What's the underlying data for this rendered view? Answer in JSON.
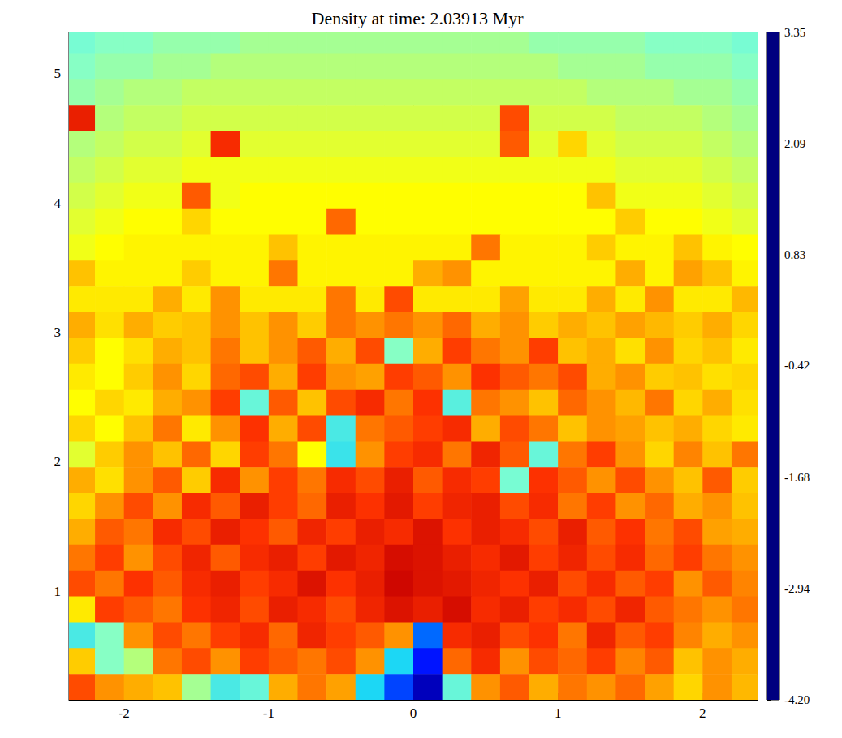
{
  "chart_data": {
    "type": "heatmap",
    "title": "Density at time: 2.03913 Myr",
    "xlim": [
      -2.38,
      2.38
    ],
    "ylim": [
      0.16,
      5.32
    ],
    "xticks": [
      -2,
      -1,
      0,
      1,
      2
    ],
    "yticks": [
      1,
      2,
      3,
      4,
      5
    ],
    "colorbar": {
      "range": [
        -4.2,
        3.35
      ],
      "ticks": [
        3.35,
        2.09,
        0.83,
        -0.42,
        -1.68,
        -2.94,
        {
          "value": -4.2,
          "label": "-4.20"
        }
      ]
    },
    "x": [
      -2.3,
      -2.1,
      -1.9,
      -1.7,
      -1.5,
      -1.3,
      -1.1,
      -0.9,
      -0.7,
      -0.5,
      -0.3,
      -0.1,
      0.1,
      0.3,
      0.5,
      0.7,
      0.9,
      1.1,
      1.3,
      1.5,
      1.7,
      1.9,
      2.1,
      2.3
    ],
    "y": [
      5.26,
      5.06,
      4.86,
      4.66,
      4.46,
      4.26,
      4.06,
      3.86,
      3.66,
      3.46,
      3.26,
      3.06,
      2.86,
      2.66,
      2.46,
      2.26,
      2.06,
      1.86,
      1.66,
      1.46,
      1.26,
      1.06,
      0.86,
      0.66,
      0.46,
      0.26
    ],
    "values": [
      [
        -0.9,
        -0.8,
        -0.8,
        -0.7,
        -0.7,
        -0.7,
        -0.6,
        -0.6,
        -0.6,
        -0.6,
        -0.6,
        -0.6,
        -0.6,
        -0.6,
        -0.6,
        -0.6,
        -0.7,
        -0.7,
        -0.7,
        -0.7,
        -0.8,
        -0.8,
        -0.8,
        -0.9
      ],
      [
        -0.8,
        -0.7,
        -0.7,
        -0.6,
        -0.6,
        -0.5,
        -0.5,
        -0.5,
        -0.5,
        -0.5,
        -0.5,
        -0.5,
        -0.5,
        -0.5,
        -0.5,
        -0.5,
        -0.5,
        -0.6,
        -0.6,
        -0.6,
        -0.7,
        -0.7,
        -0.7,
        -0.8
      ],
      [
        -0.7,
        -0.6,
        -0.5,
        -0.5,
        -0.4,
        -0.4,
        -0.4,
        -0.4,
        -0.4,
        -0.4,
        -0.4,
        -0.4,
        -0.4,
        -0.4,
        -0.4,
        -0.4,
        -0.4,
        -0.4,
        -0.5,
        -0.5,
        -0.5,
        -0.6,
        -0.6,
        -0.7
      ],
      [
        2.0,
        -0.5,
        -0.4,
        -0.4,
        -0.3,
        -0.3,
        -0.3,
        -0.3,
        -0.3,
        -0.3,
        -0.3,
        -0.3,
        -0.3,
        -0.3,
        -0.3,
        1.5,
        -0.3,
        -0.3,
        -0.3,
        -0.4,
        -0.4,
        -0.4,
        -0.5,
        -0.6
      ],
      [
        -0.5,
        -0.4,
        -0.3,
        -0.3,
        -0.2,
        1.8,
        -0.2,
        -0.2,
        -0.2,
        -0.2,
        -0.2,
        -0.2,
        -0.2,
        -0.2,
        -0.2,
        1.4,
        -0.2,
        0.4,
        -0.2,
        -0.3,
        -0.3,
        -0.3,
        -0.4,
        -0.5
      ],
      [
        -0.4,
        -0.3,
        -0.2,
        -0.2,
        -0.1,
        -0.1,
        -0.1,
        -0.1,
        -0.1,
        -0.1,
        -0.1,
        -0.1,
        -0.1,
        -0.1,
        -0.1,
        -0.1,
        -0.1,
        -0.1,
        -0.1,
        -0.2,
        -0.2,
        -0.2,
        -0.3,
        -0.4
      ],
      [
        -0.3,
        -0.2,
        -0.1,
        -0.1,
        1.4,
        -0.1,
        0.0,
        0.0,
        0.0,
        0.0,
        0.0,
        0.0,
        0.0,
        0.0,
        0.0,
        0.0,
        0.0,
        0.0,
        0.6,
        -0.1,
        -0.1,
        -0.1,
        -0.2,
        -0.3
      ],
      [
        -0.2,
        -0.1,
        0.0,
        0.0,
        0.4,
        0.0,
        0.0,
        0.0,
        0.0,
        1.3,
        0.0,
        0.0,
        0.0,
        0.0,
        0.0,
        0.0,
        0.0,
        0.0,
        0.0,
        0.5,
        0.0,
        0.0,
        -0.1,
        -0.2
      ],
      [
        -0.1,
        0.0,
        0.1,
        0.1,
        0.1,
        0.1,
        0.1,
        0.6,
        0.1,
        0.1,
        0.1,
        0.1,
        0.1,
        0.1,
        1.2,
        0.1,
        0.1,
        0.1,
        0.5,
        0.1,
        0.1,
        0.6,
        0.1,
        0.0
      ],
      [
        0.6,
        0.1,
        0.1,
        0.1,
        0.5,
        0.1,
        0.1,
        1.2,
        0.1,
        0.1,
        0.1,
        0.1,
        0.8,
        1.0,
        0.1,
        0.1,
        0.1,
        0.1,
        0.1,
        0.8,
        0.1,
        0.9,
        0.6,
        0.1
      ],
      [
        0.2,
        0.2,
        0.2,
        0.8,
        0.2,
        1.0,
        0.2,
        0.2,
        0.2,
        1.2,
        0.2,
        1.5,
        0.2,
        0.2,
        0.2,
        0.9,
        0.2,
        0.2,
        0.8,
        0.2,
        1.0,
        0.2,
        0.2,
        0.7
      ],
      [
        0.8,
        0.3,
        0.8,
        0.5,
        0.6,
        1.0,
        0.6,
        1.0,
        0.5,
        1.2,
        1.0,
        1.2,
        1.0,
        1.3,
        0.8,
        1.0,
        0.5,
        0.8,
        0.6,
        0.9,
        0.7,
        0.5,
        0.8,
        0.4
      ],
      [
        0.5,
        0.0,
        0.3,
        0.8,
        0.6,
        1.2,
        0.6,
        1.0,
        1.4,
        0.8,
        1.5,
        -0.8,
        0.8,
        1.6,
        1.2,
        1.0,
        1.6,
        0.6,
        0.8,
        0.3,
        1.0,
        0.4,
        0.6,
        0.2
      ],
      [
        0.2,
        0.0,
        0.5,
        1.0,
        0.4,
        1.3,
        1.5,
        0.8,
        1.6,
        1.0,
        0.9,
        1.6,
        1.4,
        1.0,
        1.7,
        1.4,
        1.2,
        1.5,
        0.8,
        1.0,
        0.5,
        0.6,
        0.3,
        0.4
      ],
      [
        0.0,
        0.4,
        0.2,
        0.8,
        1.0,
        1.6,
        -1.0,
        1.4,
        0.6,
        1.5,
        1.8,
        1.2,
        1.7,
        -1.1,
        1.2,
        1.0,
        0.6,
        1.3,
        1.0,
        0.7,
        1.2,
        0.4,
        0.8,
        0.3
      ],
      [
        0.4,
        0.0,
        0.6,
        1.2,
        0.2,
        1.0,
        1.7,
        0.8,
        1.5,
        -1.2,
        1.2,
        1.4,
        1.6,
        1.8,
        0.8,
        1.5,
        1.2,
        0.6,
        1.0,
        0.9,
        0.6,
        0.8,
        0.4,
        0.2
      ],
      [
        -0.2,
        0.5,
        1.0,
        0.6,
        1.3,
        0.4,
        1.6,
        1.2,
        0.0,
        -1.3,
        1.0,
        1.6,
        1.8,
        1.2,
        1.9,
        1.4,
        -1.0,
        1.2,
        1.6,
        1.0,
        0.4,
        1.1,
        0.6,
        1.2
      ],
      [
        0.8,
        0.3,
        1.0,
        1.4,
        0.5,
        1.8,
        1.0,
        1.6,
        1.2,
        1.8,
        1.5,
        2.0,
        1.4,
        1.8,
        1.6,
        -0.9,
        1.7,
        1.4,
        1.0,
        1.5,
        1.0,
        0.6,
        1.4,
        0.5
      ],
      [
        0.4,
        1.0,
        1.5,
        1.0,
        1.8,
        1.4,
        2.0,
        1.6,
        1.3,
        2.0,
        1.7,
        2.1,
        1.6,
        1.9,
        2.0,
        1.5,
        1.8,
        1.2,
        1.6,
        1.0,
        1.3,
        0.8,
        1.0,
        0.6
      ],
      [
        0.8,
        1.4,
        1.2,
        1.8,
        1.5,
        2.0,
        1.7,
        1.4,
        1.9,
        1.6,
        2.0,
        1.8,
        2.2,
        1.7,
        2.0,
        1.8,
        1.5,
        2.0,
        1.4,
        1.7,
        1.2,
        1.5,
        0.9,
        0.8
      ],
      [
        1.2,
        1.6,
        1.0,
        1.5,
        1.9,
        1.4,
        1.8,
        2.0,
        1.6,
        2.1,
        1.9,
        2.3,
        2.2,
        2.0,
        1.8,
        2.1,
        1.6,
        1.9,
        1.5,
        1.8,
        1.3,
        1.6,
        1.2,
        1.0
      ],
      [
        1.5,
        1.2,
        1.7,
        1.4,
        1.8,
        2.0,
        1.6,
        1.8,
        2.2,
        1.7,
        2.0,
        2.4,
        2.2,
        2.1,
        1.9,
        1.7,
        2.0,
        1.5,
        1.8,
        1.4,
        1.6,
        1.0,
        1.4,
        1.1
      ],
      [
        0.2,
        1.6,
        1.4,
        1.2,
        1.7,
        1.9,
        1.5,
        2.0,
        1.8,
        1.5,
        1.9,
        2.2,
        2.0,
        2.3,
        1.8,
        2.0,
        1.6,
        1.8,
        1.5,
        1.9,
        1.4,
        1.2,
        1.0,
        1.2
      ],
      [
        -1.2,
        -0.8,
        1.0,
        1.5,
        1.2,
        1.6,
        1.8,
        1.3,
        1.9,
        1.6,
        1.4,
        1.0,
        -2.5,
        1.8,
        2.0,
        1.5,
        1.7,
        1.2,
        1.9,
        1.4,
        1.6,
        1.1,
        0.8,
        1.0
      ],
      [
        0.5,
        -0.8,
        -0.5,
        1.2,
        1.5,
        1.0,
        1.6,
        1.4,
        1.2,
        1.5,
        1.0,
        -1.5,
        -3.2,
        1.3,
        1.8,
        1.0,
        1.5,
        1.3,
        1.6,
        1.1,
        1.4,
        0.6,
        1.0,
        0.8
      ],
      [
        1.5,
        1.0,
        0.8,
        0.6,
        -0.6,
        -1.2,
        -1.0,
        0.8,
        1.2,
        0.9,
        -1.5,
        -2.8,
        -3.8,
        -1.0,
        1.0,
        1.4,
        0.8,
        1.2,
        1.0,
        1.3,
        0.9,
        0.4,
        1.0,
        0.7
      ]
    ]
  }
}
